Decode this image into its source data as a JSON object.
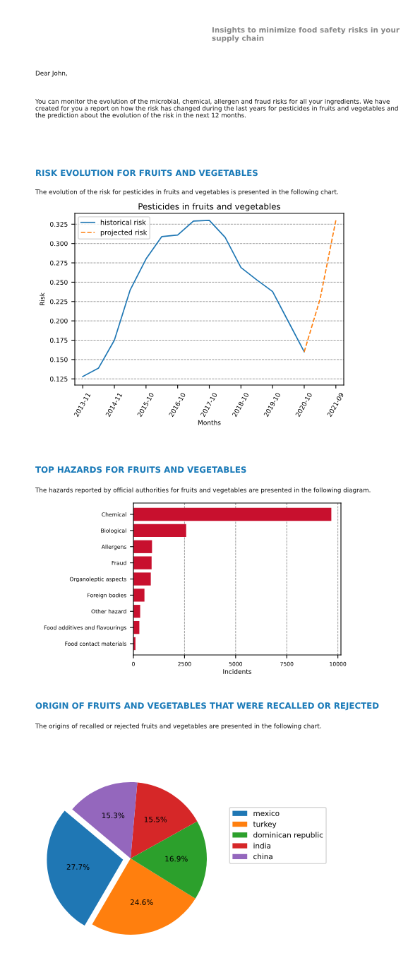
{
  "chart_data": [
    {
      "type": "line",
      "title": "Pesticides in fruits and vegetables",
      "xlabel": "Months",
      "ylabel": "Risk",
      "annotations": [
        "Insights to minimize food safety risks in your supply chain",
        "Dear John,",
        "You can monitor the evolution of the microbial, chemical, allergen and fraud risks for all your ingredients. We have created for you a report on how the risk has changed during the last years for pesticides in fruits and vegetables and the prediction about the evolution of the risk in the next 12 months.",
        "RISK EVOLUTION FOR FRUITS AND VEGETABLES",
        "The evolution of the risk for pesticides in fruits and vegetables is presented in the following chart."
      ],
      "categories": [
        "2013-11",
        null,
        "2014-11",
        null,
        "2015-10",
        null,
        "2016-10",
        null,
        "2017-10",
        null,
        "2018-10",
        null,
        "2019-10",
        null,
        "2020-10",
        null,
        "2021-09"
      ],
      "series": [
        {
          "name": "historical risk",
          "color": "#1f77b4",
          "line_style": "solid",
          "values": [
            0.128,
            0.139,
            0.175,
            0.24,
            0.28,
            0.309,
            0.311,
            0.329,
            0.33,
            0.308,
            0.269,
            0.253,
            0.238,
            0.199,
            0.16,
            null,
            null
          ]
        },
        {
          "name": "projected risk",
          "color": "#ff7f0e",
          "line_style": "dashed",
          "values": [
            null,
            null,
            null,
            null,
            null,
            null,
            null,
            null,
            null,
            null,
            null,
            null,
            null,
            null,
            0.16,
            0.228,
            0.33
          ]
        }
      ],
      "ylim": [
        0.117,
        0.339
      ],
      "yticks": [
        {
          "value": 0.125,
          "label": "0.125"
        },
        {
          "value": 0.15,
          "label": "0.150"
        },
        {
          "value": 0.175,
          "label": "0.175"
        },
        {
          "value": 0.2,
          "label": "0.200"
        },
        {
          "value": 0.225,
          "label": "0.225"
        },
        {
          "value": 0.25,
          "label": "0.250"
        },
        {
          "value": 0.275,
          "label": "0.275"
        },
        {
          "value": 0.3,
          "label": "0.300"
        },
        {
          "value": 0.325,
          "label": "0.325"
        }
      ],
      "grid": "y",
      "legend": "top left"
    },
    {
      "type": "bar",
      "orientation": "horizontal",
      "xlabel": "Incidents",
      "annotations": [
        "TOP HAZARDS FOR FRUITS AND VEGETABLES",
        "The hazards reported by official authorities for fruits and vegetables are presented in the following diagram."
      ],
      "categories": [
        "Chemical",
        "Biological",
        "Allergens",
        "Fraud",
        "Organoleptic aspects",
        "Foreign bodies",
        "Other hazard",
        "Food additives and flavourings",
        "Food contact materials"
      ],
      "values": [
        9680,
        2580,
        910,
        890,
        850,
        540,
        330,
        290,
        100
      ],
      "color": "#c8102e",
      "xlim": [
        0,
        10150
      ],
      "xticks": [
        0,
        2500,
        5000,
        7500,
        10000
      ],
      "grid": "x"
    },
    {
      "type": "pie",
      "annotations": [
        "ORIGIN OF FRUITS AND VEGETABLES THAT WERE RECALLED OR REJECTED",
        "The origins of recalled or rejected fruits and vegetables are presented in the following chart."
      ],
      "categories": [
        "mexico",
        "turkey",
        "dominican republic",
        "india",
        "china"
      ],
      "values": [
        27.7,
        24.6,
        16.9,
        15.5,
        15.3
      ],
      "value_labels": [
        "27.7%",
        "24.6%",
        "16.9%",
        "15.5%",
        "15.3%"
      ],
      "colors": [
        "#1f77b4",
        "#ff7f0e",
        "#2ca02c",
        "#d62728",
        "#9467bd"
      ],
      "legend": "right"
    }
  ]
}
